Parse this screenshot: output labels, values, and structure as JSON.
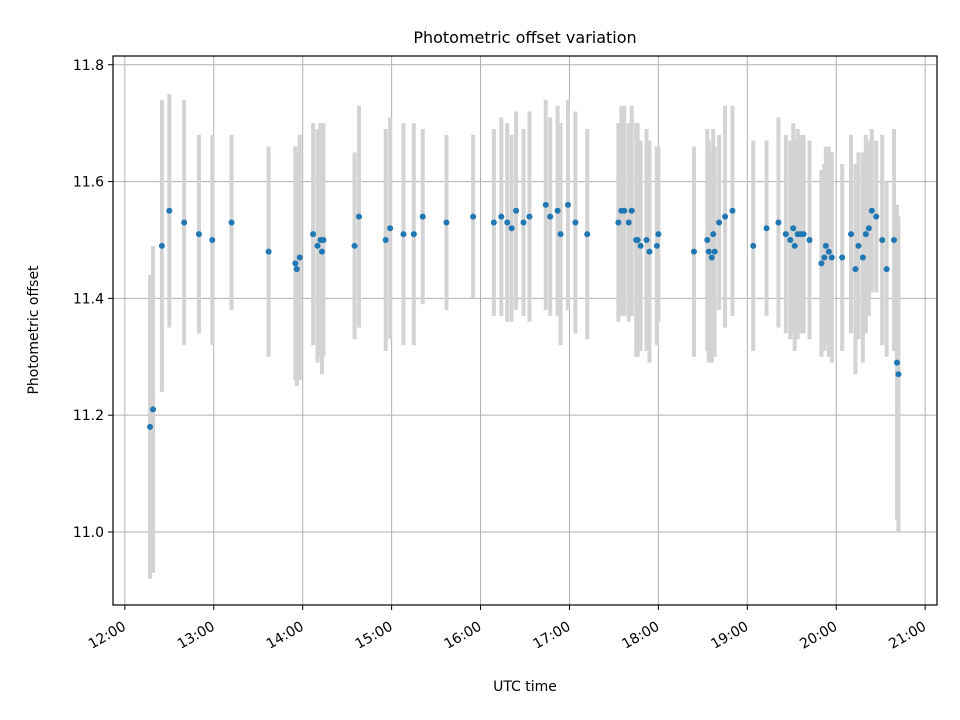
{
  "chart_data": {
    "type": "scatter",
    "title": "Photometric offset variation",
    "xlabel": "UTC time",
    "ylabel": "Photometric offset",
    "xlim": [
      "11:52",
      "21:08"
    ],
    "ylim": [
      10.875,
      11.815
    ],
    "xticks": [
      "12:00",
      "13:00",
      "14:00",
      "15:00",
      "16:00",
      "17:00",
      "18:00",
      "19:00",
      "20:00",
      "21:00"
    ],
    "yticks": [
      "11.0",
      "11.2",
      "11.4",
      "11.6",
      "11.8"
    ],
    "grid": true,
    "colors": {
      "point": "#1f77b4",
      "errorbar": "#d3d3d3",
      "grid": "#b0b0b0",
      "axes": "#000000"
    },
    "series": [
      {
        "x": [
          "12:17",
          "12:19",
          "12:25",
          "12:30",
          "12:40",
          "12:50",
          "12:59",
          "13:12",
          "13:37",
          "13:55",
          "13:56",
          "13:58",
          "14:07",
          "14:10",
          "14:12",
          "14:13",
          "14:14",
          "14:35",
          "14:38",
          "14:56",
          "14:59",
          "15:08",
          "15:15",
          "15:21",
          "15:37",
          "15:55",
          "16:09",
          "16:14",
          "16:18",
          "16:21",
          "16:24",
          "16:29",
          "16:33",
          "16:44",
          "16:47",
          "16:52",
          "16:54",
          "16:59",
          "17:04",
          "17:12",
          "17:33",
          "17:35",
          "17:37",
          "17:40",
          "17:42",
          "17:45",
          "17:46",
          "17:48",
          "17:52",
          "17:54",
          "17:59",
          "18:00",
          "18:24",
          "18:33",
          "18:34",
          "18:36",
          "18:37",
          "18:38",
          "18:41",
          "18:45",
          "18:50",
          "19:04",
          "19:13",
          "19:21",
          "19:26",
          "19:29",
          "19:31",
          "19:32",
          "19:34",
          "19:36",
          "19:38",
          "19:42",
          "19:50",
          "19:52",
          "19:53",
          "19:55",
          "19:57",
          "20:04",
          "20:10",
          "20:13",
          "20:15",
          "20:18",
          "20:20",
          "20:22",
          "20:24",
          "20:27",
          "20:31",
          "20:34",
          "20:39",
          "20:41",
          "20:42"
        ],
        "y": [
          11.18,
          11.21,
          11.49,
          11.55,
          11.53,
          11.51,
          11.5,
          11.53,
          11.48,
          11.46,
          11.45,
          11.47,
          11.51,
          11.49,
          11.5,
          11.48,
          11.5,
          11.49,
          11.54,
          11.5,
          11.52,
          11.51,
          11.51,
          11.54,
          11.53,
          11.54,
          11.53,
          11.54,
          11.53,
          11.52,
          11.55,
          11.53,
          11.54,
          11.56,
          11.54,
          11.55,
          11.51,
          11.56,
          11.53,
          11.51,
          11.53,
          11.55,
          11.55,
          11.53,
          11.55,
          11.5,
          11.5,
          11.49,
          11.5,
          11.48,
          11.49,
          11.51,
          11.48,
          11.5,
          11.48,
          11.47,
          11.51,
          11.48,
          11.53,
          11.54,
          11.55,
          11.49,
          11.52,
          11.53,
          11.51,
          11.5,
          11.52,
          11.49,
          11.51,
          11.51,
          11.51,
          11.5,
          11.46,
          11.47,
          11.49,
          11.48,
          11.47,
          11.47,
          11.51,
          11.45,
          11.49,
          11.47,
          11.51,
          11.52,
          11.55,
          11.54,
          11.5,
          11.45,
          11.5,
          11.29,
          11.27
        ],
        "yerr": [
          0.26,
          0.28,
          0.25,
          0.2,
          0.21,
          0.17,
          0.18,
          0.15,
          0.18,
          0.2,
          0.2,
          0.21,
          0.19,
          0.2,
          0.2,
          0.21,
          0.2,
          0.16,
          0.19,
          0.19,
          0.19,
          0.19,
          0.19,
          0.15,
          0.15,
          0.14,
          0.16,
          0.17,
          0.17,
          0.16,
          0.17,
          0.16,
          0.18,
          0.18,
          0.17,
          0.18,
          0.19,
          0.18,
          0.19,
          0.18,
          0.17,
          0.18,
          0.18,
          0.17,
          0.18,
          0.2,
          0.2,
          0.18,
          0.19,
          0.19,
          0.17,
          0.15,
          0.18,
          0.19,
          0.19,
          0.18,
          0.18,
          0.18,
          0.15,
          0.19,
          0.18,
          0.18,
          0.15,
          0.18,
          0.17,
          0.17,
          0.18,
          0.18,
          0.18,
          0.17,
          0.17,
          0.17,
          0.16,
          0.16,
          0.17,
          0.18,
          0.18,
          0.16,
          0.17,
          0.18,
          0.16,
          0.18,
          0.17,
          0.15,
          0.14,
          0.13,
          0.18,
          0.15,
          0.19,
          0.27,
          0.27
        ]
      }
    ]
  }
}
